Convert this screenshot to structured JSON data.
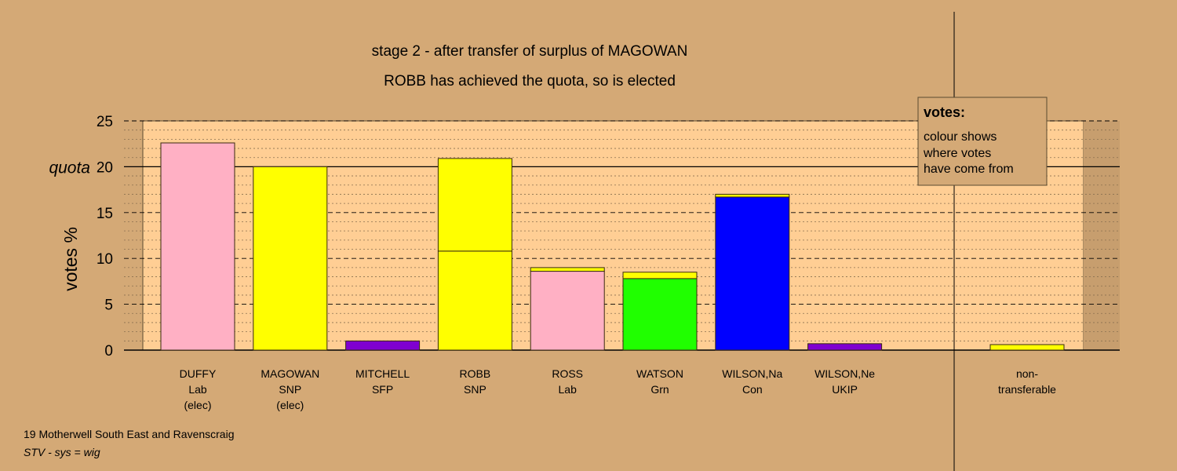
{
  "chart_data": {
    "type": "bar",
    "stacked": true,
    "title": "stage 2 - after transfer of surplus of MAGOWAN",
    "subtitle": "ROBB has achieved the quota, so is elected",
    "ylabel": "votes %",
    "ylim": [
      0,
      25
    ],
    "yticks": [
      0,
      5,
      10,
      15,
      20,
      25
    ],
    "quota": 20,
    "quota_label": "quota",
    "grid": true,
    "legend_position": "top-right",
    "legend": {
      "title": "votes:",
      "lines": [
        "colour shows",
        "where votes",
        "have come from"
      ]
    },
    "categories": [
      {
        "name": "DUFFY",
        "party": "Lab",
        "note": "(elec)",
        "segments": [
          {
            "color": "#FFB0C4",
            "value": 22.6
          }
        ]
      },
      {
        "name": "MAGOWAN",
        "party": "SNP",
        "note": "(elec)",
        "segments": [
          {
            "color": "#FFFF00",
            "value": 20.0
          }
        ]
      },
      {
        "name": "MITCHELL",
        "party": "SFP",
        "note": "",
        "segments": [
          {
            "color": "#7F00D0",
            "value": 1.0
          }
        ]
      },
      {
        "name": "ROBB",
        "party": "SNP",
        "note": "",
        "segments": [
          {
            "color": "#FFFF00",
            "value": 10.8
          },
          {
            "color": "#FFFF00",
            "value": 10.1
          }
        ]
      },
      {
        "name": "ROSS",
        "party": "Lab",
        "note": "",
        "segments": [
          {
            "color": "#FFB0C4",
            "value": 8.6
          },
          {
            "color": "#FFFF00",
            "value": 0.4
          }
        ]
      },
      {
        "name": "WATSON",
        "party": "Grn",
        "note": "",
        "segments": [
          {
            "color": "#20FF00",
            "value": 7.8
          },
          {
            "color": "#FFFF00",
            "value": 0.7
          }
        ]
      },
      {
        "name": "WILSON,Na",
        "party": "Con",
        "note": "",
        "segments": [
          {
            "color": "#0000FF",
            "value": 16.7
          },
          {
            "color": "#FFFF00",
            "value": 0.3
          }
        ]
      },
      {
        "name": "WILSON,Ne",
        "party": "UKIP",
        "note": "",
        "segments": [
          {
            "color": "#7F00D0",
            "value": 0.7
          }
        ]
      }
    ],
    "non_transferable": {
      "label_lines": [
        "non-",
        "transferable"
      ],
      "segments": [
        {
          "color": "#FFFF00",
          "value": 0.6
        }
      ]
    }
  },
  "footer": {
    "line1": "19 Motherwell South East and Ravenscraig",
    "line2": "STV - sys = wig"
  }
}
